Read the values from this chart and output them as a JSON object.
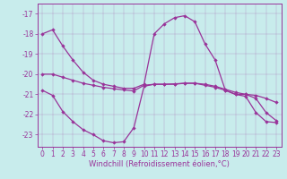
{
  "xlabel": "Windchill (Refroidissement éolien,°C)",
  "background_color": "#c8ecec",
  "line_color": "#993399",
  "xlim": [
    -0.5,
    23.5
  ],
  "ylim": [
    -23.6,
    -16.5
  ],
  "yticks": [
    -23,
    -22,
    -21,
    -20,
    -19,
    -18,
    -17
  ],
  "xticks": [
    0,
    1,
    2,
    3,
    4,
    5,
    6,
    7,
    8,
    9,
    10,
    11,
    12,
    13,
    14,
    15,
    16,
    17,
    18,
    19,
    20,
    21,
    22,
    23
  ],
  "series1_x": [
    0,
    1,
    2,
    3,
    4,
    5,
    6,
    7,
    8,
    9,
    10,
    11,
    12,
    13,
    14,
    15,
    16,
    17,
    18,
    19,
    20,
    21,
    22,
    23
  ],
  "series1_y": [
    -18.0,
    -17.8,
    -18.6,
    -19.3,
    -19.9,
    -20.3,
    -20.5,
    -20.6,
    -20.7,
    -20.7,
    -20.5,
    -18.0,
    -17.5,
    -17.2,
    -17.1,
    -17.4,
    -18.5,
    -19.3,
    -20.8,
    -21.0,
    -21.0,
    -21.2,
    -21.9,
    -22.3
  ],
  "series2_x": [
    0,
    1,
    2,
    3,
    4,
    5,
    6,
    7,
    8,
    9,
    10,
    11,
    12,
    13,
    14,
    15,
    16,
    17,
    18,
    19,
    20,
    21,
    22,
    23
  ],
  "series2_y": [
    -20.0,
    -20.0,
    -20.15,
    -20.3,
    -20.45,
    -20.55,
    -20.65,
    -20.72,
    -20.78,
    -20.83,
    -20.55,
    -20.5,
    -20.5,
    -20.48,
    -20.45,
    -20.45,
    -20.5,
    -20.6,
    -20.75,
    -20.9,
    -21.0,
    -21.05,
    -21.2,
    -21.4
  ],
  "series3_x": [
    0,
    1,
    2,
    3,
    4,
    5,
    6,
    7,
    8,
    9,
    10,
    11,
    12,
    13,
    14,
    15,
    16,
    17,
    18,
    19,
    20,
    21,
    22,
    23
  ],
  "series3_y": [
    -20.8,
    -21.05,
    -21.85,
    -22.35,
    -22.75,
    -23.0,
    -23.3,
    -23.4,
    -23.35,
    -22.65,
    -20.6,
    -20.5,
    -20.5,
    -20.5,
    -20.45,
    -20.45,
    -20.55,
    -20.65,
    -20.8,
    -21.0,
    -21.1,
    -21.9,
    -22.35,
    -22.4
  ],
  "tick_fontsize": 5.5,
  "xlabel_fontsize": 6,
  "linewidth": 0.9,
  "markersize": 2.2
}
